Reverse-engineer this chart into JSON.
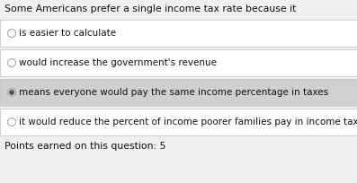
{
  "title": "Some Americans prefer a single income tax rate because it",
  "options": [
    "is easier to calculate",
    "would increase the government's revenue",
    "means everyone would pay the same income percentage in taxes",
    "it would reduce the percent of income poorer families pay in income taxes"
  ],
  "selected_index": 2,
  "footer": "Points earned on this question: 5",
  "bg_color": "#f0f0f0",
  "option_bg_normal": "#ffffff",
  "option_bg_selected": "#d0d0d0",
  "option_border_color": "#c0c0c0",
  "title_color": "#111111",
  "option_text_color": "#111111",
  "footer_color": "#111111",
  "radio_color_empty": "#aaaaaa",
  "radio_color_filled": "#555555",
  "title_fontsize": 7.8,
  "option_fontsize": 7.5,
  "footer_fontsize": 7.8
}
